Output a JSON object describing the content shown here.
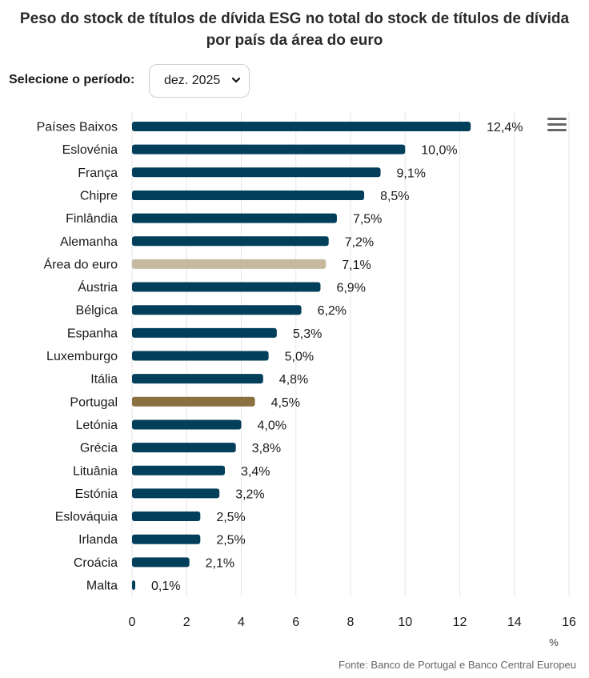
{
  "header": {
    "title_line1": "Peso do stock de títulos de dívida ESG no total do stock de títulos de dívida",
    "title_line2": "por país da área do euro"
  },
  "controls": {
    "period_label": "Selecione o período:",
    "period_selected": "dez. 2025",
    "menu_icon": "hamburger-menu-icon"
  },
  "source": "Fonte: Banco de Portugal e Banco Central Europeu",
  "colors": {
    "default_bar": "#023f5a",
    "euro_area_bar": "#c6b9a0",
    "portugal_bar": "#8c7140",
    "gridline": "#e6e6e6"
  },
  "chart_data": {
    "type": "bar",
    "orientation": "horizontal",
    "title": "Peso do stock de títulos de dívida ESG no total do stock de títulos de dívida por país da área do euro",
    "xlabel": "%",
    "ylabel": "",
    "xlim": [
      0,
      16
    ],
    "xticks": [
      0,
      2,
      4,
      6,
      8,
      10,
      12,
      14,
      16
    ],
    "grid": true,
    "categories": [
      "Países Baixos",
      "Eslovénia",
      "França",
      "Chipre",
      "Finlândia",
      "Alemanha",
      "Área do euro",
      "Áustria",
      "Bélgica",
      "Espanha",
      "Luxemburgo",
      "Itália",
      "Portugal",
      "Letónia",
      "Grécia",
      "Lituânia",
      "Estónia",
      "Eslováquia",
      "Irlanda",
      "Croácia",
      "Malta"
    ],
    "values": [
      12.4,
      10.0,
      9.1,
      8.5,
      7.5,
      7.2,
      7.1,
      6.9,
      6.2,
      5.3,
      5.0,
      4.8,
      4.5,
      4.0,
      3.8,
      3.4,
      3.2,
      2.5,
      2.5,
      2.1,
      0.1
    ],
    "data_labels": [
      "12,4%",
      "10,0%",
      "9,1%",
      "8,5%",
      "7,5%",
      "7,2%",
      "7,1%",
      "6,9%",
      "6,2%",
      "5,3%",
      "5,0%",
      "4,8%",
      "4,5%",
      "4,0%",
      "3,8%",
      "3,4%",
      "3,2%",
      "2,5%",
      "2,5%",
      "2,1%",
      "0,1%"
    ],
    "highlight": {
      "Área do euro": "euro_area_bar",
      "Portugal": "portugal_bar"
    }
  }
}
